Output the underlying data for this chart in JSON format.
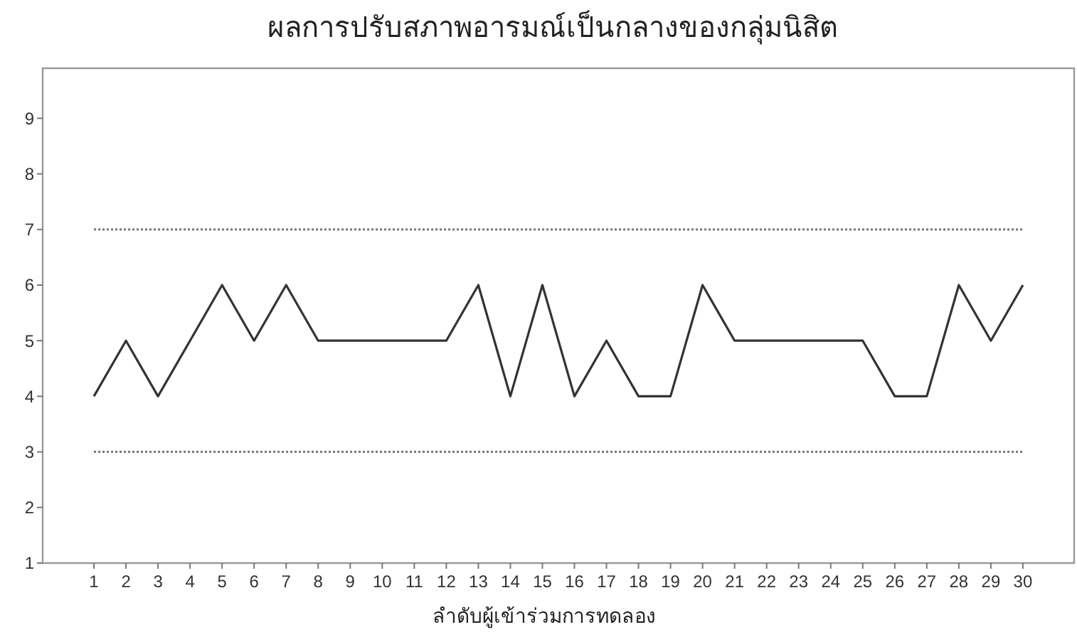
{
  "chart_data": {
    "type": "line",
    "title": "ผลการปรับสภาพอารมณ์เป็นกลางของกลุ่มนิสิต",
    "xlabel": "ลำดับผู้เข้าร่วมการทดลอง",
    "x": [
      1,
      2,
      3,
      4,
      5,
      6,
      7,
      8,
      9,
      10,
      11,
      12,
      13,
      14,
      15,
      16,
      17,
      18,
      19,
      20,
      21,
      22,
      23,
      24,
      25,
      26,
      27,
      28,
      29,
      30
    ],
    "series": [
      {
        "color": "#333333",
        "values": [
          4,
          5,
          4,
          5,
          6,
          5,
          6,
          5,
          5,
          5,
          5,
          5,
          6,
          4,
          6,
          4,
          5,
          4,
          4,
          6,
          5,
          5,
          5,
          5,
          5,
          4,
          4,
          6,
          5,
          6
        ]
      }
    ],
    "xlim": [
      -0.6,
      31.6
    ],
    "xticks": [
      1,
      2,
      3,
      4,
      5,
      6,
      7,
      8,
      9,
      10,
      11,
      12,
      13,
      14,
      15,
      16,
      17,
      18,
      19,
      20,
      21,
      22,
      23,
      24,
      25,
      26,
      27,
      28,
      29,
      30
    ],
    "ylim": [
      1,
      9.9
    ],
    "yticks": [
      1,
      2,
      3,
      4,
      5,
      6,
      7,
      8,
      9
    ],
    "ref_lines": [
      {
        "axis": "y",
        "value": 7,
        "color": "#777777",
        "line_style": "dotted"
      },
      {
        "axis": "y",
        "value": 3,
        "color": "#777777",
        "line_style": "dotted"
      }
    ],
    "grid": false,
    "marker": "none",
    "line_style": "solid"
  }
}
